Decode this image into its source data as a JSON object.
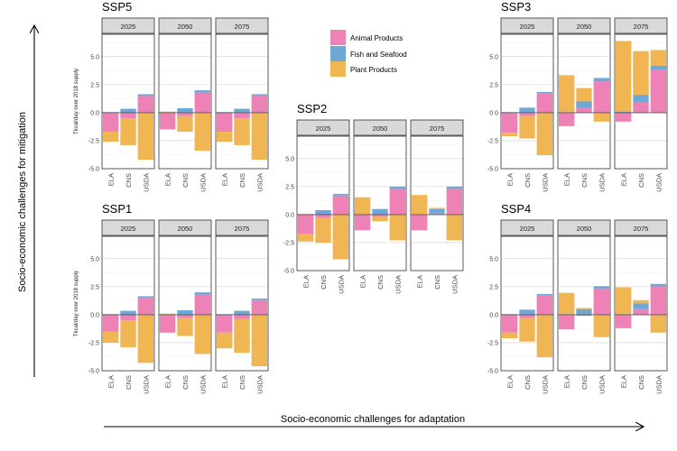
{
  "figure": {
    "y_axis_arrow_label": "Socio-economic challenges for mitigation",
    "x_axis_arrow_label": "Socio-economic challenges for adaptation"
  },
  "legend": {
    "entries": [
      {
        "key": "animal",
        "label": "Animal Products",
        "color": "#ee82b6"
      },
      {
        "key": "fish",
        "label": "Fish and Seafood",
        "color": "#6fa8d6"
      },
      {
        "key": "plant",
        "label": "Plant Products",
        "color": "#f0b653"
      }
    ]
  },
  "chart_data": [
    {
      "type": "bar",
      "stacking": "diverging",
      "title": "SSP5",
      "ylabel": "Tkcal/day over 2018 supply",
      "ylim": [
        -5,
        7
      ],
      "yticks": [
        -5,
        -2.5,
        0,
        2.5,
        5
      ],
      "ytick_labels": [
        "-5.0",
        "-2.5",
        "0.0",
        "2.5",
        "5.0"
      ],
      "categories": [
        "ELA",
        "CNS",
        "USDA"
      ],
      "panels": [
        {
          "label": "2025",
          "series": [
            {
              "name": "Animal Products",
              "values": [
                -1.7,
                -0.5,
                1.5
              ]
            },
            {
              "name": "Fish and Seafood",
              "values": [
                0.05,
                0.35,
                0.15
              ]
            },
            {
              "name": "Plant Products",
              "values": [
                -0.9,
                -2.4,
                -4.2
              ]
            }
          ]
        },
        {
          "label": "2050",
          "series": [
            {
              "name": "Animal Products",
              "values": [
                -1.5,
                -0.3,
                1.8
              ]
            },
            {
              "name": "Fish and Seafood",
              "values": [
                0.05,
                0.4,
                0.2
              ]
            },
            {
              "name": "Plant Products",
              "values": [
                0.05,
                -1.4,
                -3.4
              ]
            }
          ]
        },
        {
          "label": "2075",
          "series": [
            {
              "name": "Animal Products",
              "values": [
                -1.7,
                -0.5,
                1.5
              ]
            },
            {
              "name": "Fish and Seafood",
              "values": [
                0.05,
                0.35,
                0.15
              ]
            },
            {
              "name": "Plant Products",
              "values": [
                -0.9,
                -2.4,
                -4.2
              ]
            }
          ]
        }
      ]
    },
    {
      "type": "bar",
      "stacking": "diverging",
      "title": "SSP1",
      "ylabel": "Tkcal/day over 2018 supply",
      "ylim": [
        -5,
        7
      ],
      "yticks": [
        -5,
        -2.5,
        0,
        2.5,
        5
      ],
      "ytick_labels": [
        "-5.0",
        "-2.5",
        "0.0",
        "2.5",
        "5.0"
      ],
      "categories": [
        "ELA",
        "CNS",
        "USDA"
      ],
      "panels": [
        {
          "label": "2025",
          "series": [
            {
              "name": "Animal Products",
              "values": [
                -1.5,
                -0.5,
                1.5
              ]
            },
            {
              "name": "Fish and Seafood",
              "values": [
                0.05,
                0.35,
                0.15
              ]
            },
            {
              "name": "Plant Products",
              "values": [
                -1.0,
                -2.4,
                -4.3
              ]
            }
          ]
        },
        {
          "label": "2050",
          "series": [
            {
              "name": "Animal Products",
              "values": [
                -1.6,
                -0.3,
                1.8
              ]
            },
            {
              "name": "Fish and Seafood",
              "values": [
                0.05,
                0.4,
                0.2
              ]
            },
            {
              "name": "Plant Products",
              "values": [
                0.05,
                -1.6,
                -3.5
              ]
            }
          ]
        },
        {
          "label": "2075",
          "series": [
            {
              "name": "Animal Products",
              "values": [
                -1.6,
                -0.4,
                1.3
              ]
            },
            {
              "name": "Fish and Seafood",
              "values": [
                0.05,
                0.35,
                0.15
              ]
            },
            {
              "name": "Plant Products",
              "values": [
                -1.4,
                -3.0,
                -4.6
              ]
            }
          ]
        }
      ]
    },
    {
      "type": "bar",
      "stacking": "diverging",
      "title": "SSP2",
      "ylim": [
        -5,
        7
      ],
      "yticks": [
        -5,
        -2.5,
        0,
        2.5,
        5
      ],
      "ytick_labels": [
        "-5.0",
        "-2.5",
        "0.0",
        "2.5",
        "5.0"
      ],
      "categories": [
        "ELA",
        "CNS",
        "USDA"
      ],
      "panels": [
        {
          "label": "2025",
          "series": [
            {
              "name": "Animal Products",
              "values": [
                -1.7,
                -0.3,
                1.7
              ]
            },
            {
              "name": "Fish and Seafood",
              "values": [
                0.05,
                0.4,
                0.15
              ]
            },
            {
              "name": "Plant Products",
              "values": [
                -0.7,
                -2.2,
                -4.0
              ]
            }
          ]
        },
        {
          "label": "2050",
          "series": [
            {
              "name": "Animal Products",
              "values": [
                -1.4,
                -0.2,
                2.3
              ]
            },
            {
              "name": "Fish and Seafood",
              "values": [
                0.05,
                0.5,
                0.2
              ]
            },
            {
              "name": "Plant Products",
              "values": [
                1.5,
                -0.4,
                -2.3
              ]
            }
          ]
        },
        {
          "label": "2075",
          "series": [
            {
              "name": "Animal Products",
              "values": [
                -1.4,
                0.1,
                2.3
              ]
            },
            {
              "name": "Fish and Seafood",
              "values": [
                0.05,
                0.4,
                0.2
              ]
            },
            {
              "name": "Plant Products",
              "values": [
                1.7,
                0.1,
                -2.3
              ]
            }
          ]
        }
      ]
    },
    {
      "type": "bar",
      "stacking": "diverging",
      "title": "SSP3",
      "ylim": [
        -5,
        7
      ],
      "yticks": [
        -5,
        -2.5,
        0,
        2.5,
        5
      ],
      "ytick_labels": [
        "-5.0",
        "-2.5",
        "0.0",
        "2.5",
        "5.0"
      ],
      "categories": [
        "ELA",
        "CNS",
        "USDA"
      ],
      "panels": [
        {
          "label": "2025",
          "series": [
            {
              "name": "Animal Products",
              "values": [
                -1.8,
                -0.3,
                1.7
              ]
            },
            {
              "name": "Fish and Seafood",
              "values": [
                0.05,
                0.45,
                0.15
              ]
            },
            {
              "name": "Plant Products",
              "values": [
                -0.3,
                -2.0,
                -3.8
              ]
            }
          ]
        },
        {
          "label": "2050",
          "series": [
            {
              "name": "Animal Products",
              "values": [
                -1.2,
                0.4,
                2.8
              ]
            },
            {
              "name": "Fish and Seafood",
              "values": [
                0.05,
                0.6,
                0.3
              ]
            },
            {
              "name": "Plant Products",
              "values": [
                3.3,
                1.2,
                -0.8
              ]
            }
          ]
        },
        {
          "label": "2075",
          "series": [
            {
              "name": "Animal Products",
              "values": [
                -0.8,
                0.9,
                3.8
              ]
            },
            {
              "name": "Fish and Seafood",
              "values": [
                0.1,
                0.7,
                0.4
              ]
            },
            {
              "name": "Plant Products",
              "values": [
                6.3,
                3.9,
                1.4
              ]
            }
          ]
        }
      ]
    },
    {
      "type": "bar",
      "stacking": "diverging",
      "title": "SSP4",
      "ylim": [
        -5,
        7
      ],
      "yticks": [
        -5,
        -2.5,
        0,
        2.5,
        5
      ],
      "ytick_labels": [
        "-5.0",
        "-2.5",
        "0.0",
        "2.5",
        "5.0"
      ],
      "categories": [
        "ELA",
        "CNS",
        "USDA"
      ],
      "panels": [
        {
          "label": "2025",
          "series": [
            {
              "name": "Animal Products",
              "values": [
                -1.6,
                -0.3,
                1.7
              ]
            },
            {
              "name": "Fish and Seafood",
              "values": [
                0.05,
                0.45,
                0.15
              ]
            },
            {
              "name": "Plant Products",
              "values": [
                -0.5,
                -2.1,
                -3.8
              ]
            }
          ]
        },
        {
          "label": "2050",
          "series": [
            {
              "name": "Animal Products",
              "values": [
                -1.3,
                -0.1,
                2.3
              ]
            },
            {
              "name": "Fish and Seafood",
              "values": [
                0.05,
                0.5,
                0.25
              ]
            },
            {
              "name": "Plant Products",
              "values": [
                1.9,
                0.1,
                -2.0
              ]
            }
          ]
        },
        {
          "label": "2075",
          "series": [
            {
              "name": "Animal Products",
              "values": [
                -1.2,
                0.5,
                2.5
              ]
            },
            {
              "name": "Fish and Seafood",
              "values": [
                0.05,
                0.5,
                0.25
              ]
            },
            {
              "name": "Plant Products",
              "values": [
                2.4,
                0.3,
                -1.6
              ]
            }
          ]
        }
      ]
    }
  ]
}
